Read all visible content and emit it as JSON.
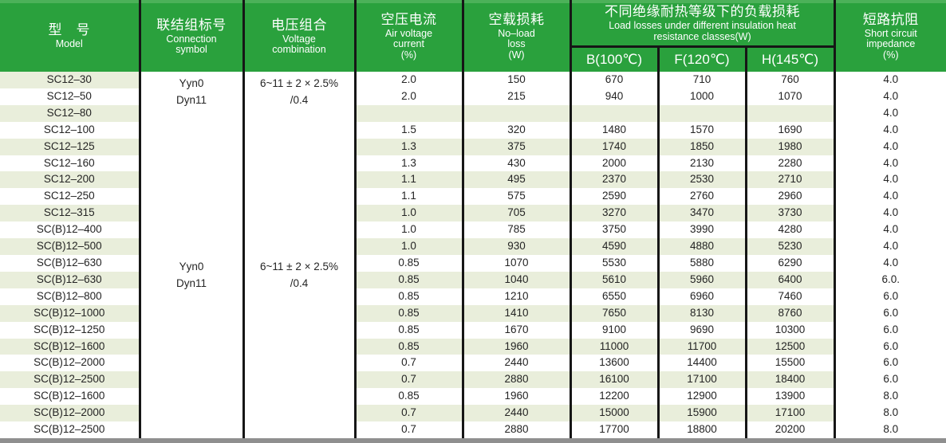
{
  "colors": {
    "header_green": "#2aa13d",
    "header_green_highlight": "#4cb159",
    "row_stripe": "#e9eedb",
    "border_black": "#161616",
    "bottom_bar_gray": "#8f8f8f",
    "header_text": "#ffffff",
    "body_text": "#242424"
  },
  "table": {
    "header": {
      "model": {
        "zh": "型　号",
        "en": "Model"
      },
      "connection": {
        "zh": "联结组标号",
        "en": "Connection\nsymbol"
      },
      "voltage": {
        "zh": "电压组合",
        "en": "Voltage\ncombination"
      },
      "current": {
        "zh": "空压电流",
        "en": "Air voltage\ncurrent\n(%)"
      },
      "noload": {
        "zh": "空载损耗",
        "en": "No–load\nloss\n(W)"
      },
      "load_losses": {
        "zh": "不同绝缘耐热等级下的负载损耗",
        "en": "Load losses under different insulation heat\nresistance classes(W)",
        "subs": [
          "B(100℃)",
          "F(120℃)",
          "H(145℃)"
        ]
      },
      "impedance": {
        "zh": "短路抗阻",
        "en": "Short circuit\nimpedance\n(%)"
      }
    },
    "groups": [
      {
        "start": 0,
        "span": 11,
        "connection": "Yyn0\nDyn11",
        "voltage": "6~11 ± 2 × 2.5%\n/0.4"
      },
      {
        "start": 11,
        "span": 11,
        "connection": "Yyn0\nDyn11",
        "voltage": "6~11 ± 2 × 2.5%\n/0.4"
      }
    ],
    "rows": [
      {
        "model": "SC12–30",
        "current": "2.0",
        "noload": "150",
        "b": "670",
        "f": "710",
        "h": "760",
        "imp": "4.0",
        "shaded": true,
        "data_white": true
      },
      {
        "model": "SC12–50",
        "current": "2.0",
        "noload": "215",
        "b": "940",
        "f": "1000",
        "h": "1070",
        "imp": "4.0",
        "shaded": false
      },
      {
        "model": "SC12–80",
        "current": "",
        "noload": "",
        "b": "",
        "f": "",
        "h": "",
        "imp": "4.0",
        "shaded": true
      },
      {
        "model": "SC12–100",
        "current": "1.5",
        "noload": "320",
        "b": "1480",
        "f": "1570",
        "h": "1690",
        "imp": "4.0",
        "shaded": false
      },
      {
        "model": "SC12–125",
        "current": "1.3",
        "noload": "375",
        "b": "1740",
        "f": "1850",
        "h": "1980",
        "imp": "4.0",
        "shaded": true
      },
      {
        "model": "SC12–160",
        "current": "1.3",
        "noload": "430",
        "b": "2000",
        "f": "2130",
        "h": "2280",
        "imp": "4.0",
        "shaded": false
      },
      {
        "model": "SC12–200",
        "current": "1.1",
        "noload": "495",
        "b": "2370",
        "f": "2530",
        "h": "2710",
        "imp": "4.0",
        "shaded": true
      },
      {
        "model": "SC12–250",
        "current": "1.1",
        "noload": "575",
        "b": "2590",
        "f": "2760",
        "h": "2960",
        "imp": "4.0",
        "shaded": false
      },
      {
        "model": "SC12–315",
        "current": "1.0",
        "noload": "705",
        "b": "3270",
        "f": "3470",
        "h": "3730",
        "imp": "4.0",
        "shaded": true
      },
      {
        "model": "SC(B)12–400",
        "current": "1.0",
        "noload": "785",
        "b": "3750",
        "f": "3990",
        "h": "4280",
        "imp": "4.0",
        "shaded": false
      },
      {
        "model": "SC(B)12–500",
        "current": "1.0",
        "noload": "930",
        "b": "4590",
        "f": "4880",
        "h": "5230",
        "imp": "4.0",
        "shaded": true
      },
      {
        "model": "SC(B)12–630",
        "current": "0.85",
        "noload": "1070",
        "b": "5530",
        "f": "5880",
        "h": "6290",
        "imp": "4.0",
        "shaded": false
      },
      {
        "model": "SC(B)12–630",
        "current": "0.85",
        "noload": "1040",
        "b": "5610",
        "f": "5960",
        "h": "6400",
        "imp": "6.0.",
        "shaded": true
      },
      {
        "model": "SC(B)12–800",
        "current": "0.85",
        "noload": "1210",
        "b": "6550",
        "f": "6960",
        "h": "7460",
        "imp": "6.0",
        "shaded": false
      },
      {
        "model": "SC(B)12–1000",
        "current": "0.85",
        "noload": "1410",
        "b": "7650",
        "f": "8130",
        "h": "8760",
        "imp": "6.0",
        "shaded": true
      },
      {
        "model": "SC(B)12–1250",
        "current": "0.85",
        "noload": "1670",
        "b": "9100",
        "f": "9690",
        "h": "10300",
        "imp": "6.0",
        "shaded": false
      },
      {
        "model": "SC(B)12–1600",
        "current": "0.85",
        "noload": "1960",
        "b": "11000",
        "f": "11700",
        "h": "12500",
        "imp": "6.0",
        "shaded": true
      },
      {
        "model": "SC(B)12–2000",
        "current": "0.7",
        "noload": "2440",
        "b": "13600",
        "f": "14400",
        "h": "15500",
        "imp": "6.0",
        "shaded": false
      },
      {
        "model": "SC(B)12–2500",
        "current": "0.7",
        "noload": "2880",
        "b": "16100",
        "f": "17100",
        "h": "18400",
        "imp": "6.0",
        "shaded": true
      },
      {
        "model": "SC(B)12–1600",
        "current": "0.85",
        "noload": "1960",
        "b": "12200",
        "f": "12900",
        "h": "13900",
        "imp": "8.0",
        "shaded": false
      },
      {
        "model": "SC(B)12–2000",
        "current": "0.7",
        "noload": "2440",
        "b": "15000",
        "f": "15900",
        "h": "17100",
        "imp": "8.0",
        "shaded": true
      },
      {
        "model": "SC(B)12–2500",
        "current": "0.7",
        "noload": "2880",
        "b": "17700",
        "f": "18800",
        "h": "20200",
        "imp": "8.0",
        "shaded": false
      }
    ]
  }
}
